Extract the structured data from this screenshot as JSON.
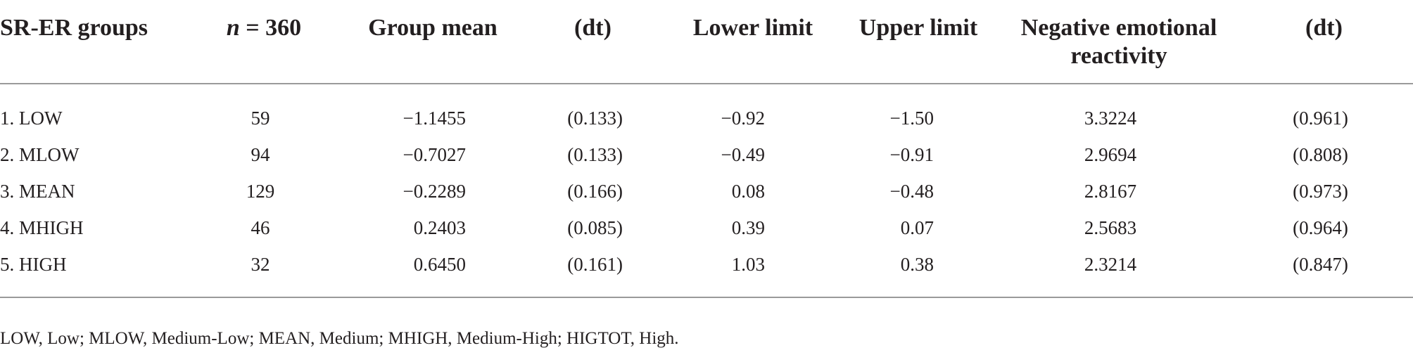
{
  "table": {
    "headers": {
      "group": "SR-ER groups",
      "n_symbol": "n",
      "n_rest": " = 360",
      "group_mean": "Group mean",
      "dt1": "(dt)",
      "lower": "Lower limit",
      "upper": "Upper limit",
      "ner": "Negative emotional reactivity",
      "dt2": "(dt)"
    },
    "rows": [
      {
        "group": "1. LOW",
        "n": "59",
        "mean": "−1.1455",
        "dt1": "(0.133)",
        "lower": "−0.92",
        "upper": "−1.50",
        "ner": "3.3224",
        "dt2": "(0.961)"
      },
      {
        "group": "2. MLOW",
        "n": "94",
        "mean": "−0.7027",
        "dt1": "(0.133)",
        "lower": "−0.49",
        "upper": "−0.91",
        "ner": "2.9694",
        "dt2": "(0.808)"
      },
      {
        "group": "3. MEAN",
        "n": "129",
        "mean": "−0.2289",
        "dt1": "(0.166)",
        "lower": "0.08",
        "upper": "−0.48",
        "ner": "2.8167",
        "dt2": "(0.973)"
      },
      {
        "group": "4. MHIGH",
        "n": "46",
        "mean": "0.2403",
        "dt1": "(0.085)",
        "lower": "0.39",
        "upper": "0.07",
        "ner": "2.5683",
        "dt2": "(0.964)"
      },
      {
        "group": "5. HIGH",
        "n": "32",
        "mean": "0.6450",
        "dt1": "(0.161)",
        "lower": "1.03",
        "upper": "0.38",
        "ner": "2.3214",
        "dt2": "(0.847)"
      }
    ]
  },
  "footnote": "LOW, Low; MLOW, Medium-Low; MEAN, Medium; MHIGH, Medium-High; HIGTOT, High."
}
